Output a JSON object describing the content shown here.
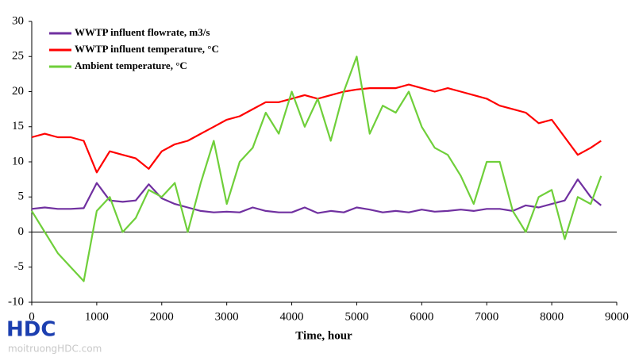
{
  "chart_data": {
    "type": "line",
    "xlabel": "Time, hour",
    "x": [
      0,
      200,
      400,
      600,
      800,
      1000,
      1200,
      1400,
      1600,
      1800,
      2000,
      2200,
      2400,
      2600,
      2800,
      3000,
      3200,
      3400,
      3600,
      3800,
      4000,
      4200,
      4400,
      4600,
      4800,
      5000,
      5200,
      5400,
      5600,
      5800,
      6000,
      6200,
      6400,
      6600,
      6800,
      7000,
      7200,
      7400,
      7600,
      7800,
      8000,
      8200,
      8400,
      8600,
      8760
    ],
    "series": [
      {
        "name": "WWTP influent flowrate, m3/s",
        "color": "#7030a0",
        "values": [
          3.3,
          3.5,
          3.3,
          3.3,
          3.4,
          7.0,
          4.5,
          4.3,
          4.5,
          6.8,
          4.8,
          4.0,
          3.5,
          3.0,
          2.8,
          2.9,
          2.8,
          3.5,
          3.0,
          2.8,
          2.8,
          3.5,
          2.7,
          3.0,
          2.8,
          3.5,
          3.2,
          2.8,
          3.0,
          2.8,
          3.2,
          2.9,
          3.0,
          3.2,
          3.0,
          3.3,
          3.3,
          3.0,
          3.8,
          3.5,
          4.0,
          4.5,
          7.5,
          5.0,
          3.8
        ]
      },
      {
        "name": "WWTP influent temperature, °C",
        "color": "#ff0000",
        "values": [
          13.5,
          14,
          13.5,
          13.5,
          13,
          8.5,
          11.5,
          11,
          10.5,
          9,
          11.5,
          12.5,
          13,
          14,
          15,
          16,
          16.5,
          17.5,
          18.5,
          18.5,
          19,
          19.5,
          19,
          19.5,
          20,
          20.3,
          20.5,
          20.5,
          20.5,
          21,
          20.5,
          20,
          20.5,
          20,
          19.5,
          19,
          18,
          17.5,
          17,
          15.5,
          16,
          13.5,
          11,
          12,
          13
        ]
      },
      {
        "name": "Ambient temperature, °C",
        "color": "#6fcf3a",
        "values": [
          3,
          0,
          -3,
          -5,
          -7,
          3,
          5,
          0,
          2,
          6,
          5,
          7,
          0,
          7,
          13,
          4,
          10,
          12,
          17,
          14,
          20,
          15,
          19,
          13,
          20,
          25,
          14,
          18,
          17,
          20,
          15,
          12,
          11,
          8,
          4,
          10,
          10,
          3,
          0,
          5,
          6,
          -1,
          5,
          4,
          8
        ]
      }
    ],
    "xlim": [
      0,
      9000
    ],
    "xticks": [
      0,
      1000,
      2000,
      3000,
      4000,
      5000,
      6000,
      7000,
      8000,
      9000
    ],
    "ylim": [
      -10,
      30
    ],
    "yticks": [
      -10,
      -5,
      0,
      5,
      10,
      15,
      20,
      25,
      30
    ],
    "zero_line": true,
    "legend": "top-left"
  },
  "watermark": {
    "logo": "HDC",
    "site": "moitruongHDC.com"
  }
}
